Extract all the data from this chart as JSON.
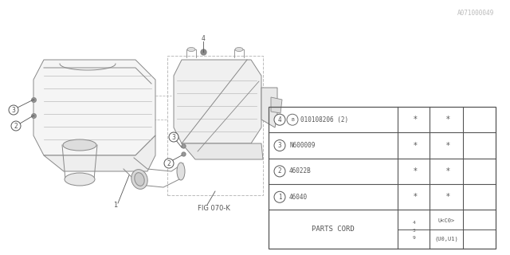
{
  "bg_color": "#ffffff",
  "line_color": "#888888",
  "dark_color": "#555555",
  "light_color": "#bbbbbb",
  "table": {
    "rows": [
      {
        "num": "1",
        "part": "46040"
      },
      {
        "num": "2",
        "part": "46022B"
      },
      {
        "num": "3",
        "part": "N600009"
      },
      {
        "num": "4",
        "part": "010108206 (2)",
        "has_b": true
      }
    ]
  },
  "fig_label": "FIG 070-K",
  "watermark": "A071000049",
  "note_234": "2\n3\n4",
  "note_934": "9\n3\n4",
  "col3_top": "(U0,U1)",
  "col3_bot": "U<C0>"
}
